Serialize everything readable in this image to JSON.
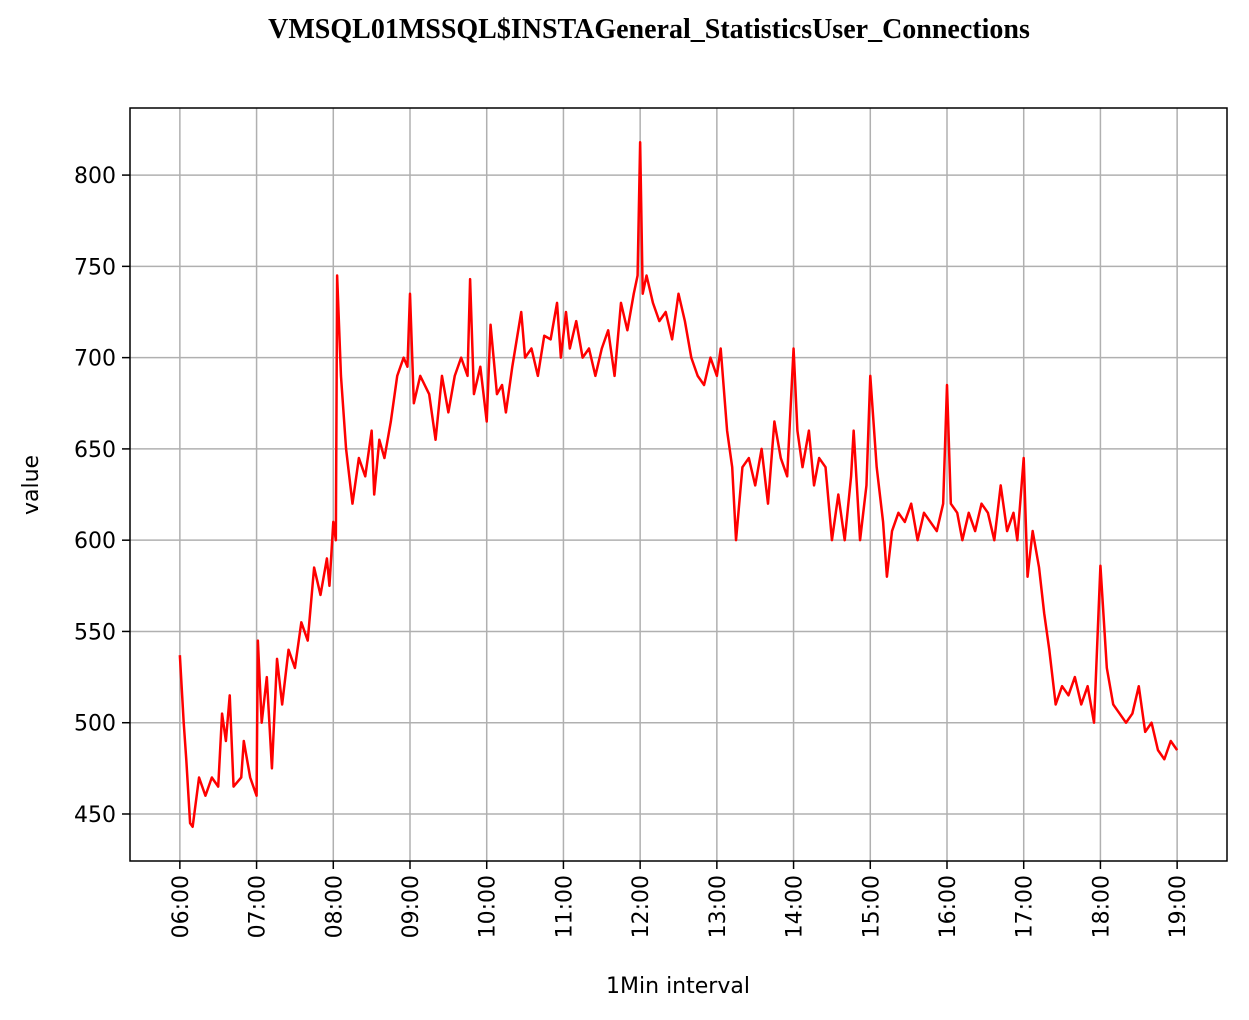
{
  "chart_data": {
    "type": "line",
    "title": "VMSQL01MSSQL$INSTAGeneral_StatisticsUser_Connections",
    "x_label": "1Min interval",
    "y_label": "value",
    "x": [
      "06:00",
      "06:03",
      "06:05",
      "06:08",
      "06:10",
      "06:15",
      "06:20",
      "06:25",
      "06:30",
      "06:33",
      "06:36",
      "06:39",
      "06:42",
      "06:48",
      "06:50",
      "06:55",
      "07:00",
      "07:01",
      "07:04",
      "07:08",
      "07:12",
      "07:16",
      "07:20",
      "07:25",
      "07:30",
      "07:35",
      "07:40",
      "07:45",
      "07:50",
      "07:55",
      "07:57",
      "08:00",
      "08:02",
      "08:03",
      "08:06",
      "08:10",
      "08:15",
      "08:20",
      "08:25",
      "08:30",
      "08:32",
      "08:36",
      "08:40",
      "08:45",
      "08:50",
      "08:55",
      "08:58",
      "09:00",
      "09:03",
      "09:08",
      "09:15",
      "09:20",
      "09:25",
      "09:30",
      "09:35",
      "09:40",
      "09:45",
      "09:47",
      "09:50",
      "09:55",
      "10:00",
      "10:03",
      "10:08",
      "10:12",
      "10:15",
      "10:20",
      "10:27",
      "10:30",
      "10:35",
      "10:40",
      "10:45",
      "10:50",
      "10:55",
      "10:58",
      "11:02",
      "11:05",
      "11:10",
      "11:15",
      "11:20",
      "11:25",
      "11:30",
      "11:35",
      "11:40",
      "11:45",
      "11:50",
      "11:55",
      "11:58",
      "12:00",
      "12:02",
      "12:05",
      "12:10",
      "12:15",
      "12:20",
      "12:25",
      "12:30",
      "12:35",
      "12:40",
      "12:45",
      "12:50",
      "12:55",
      "13:00",
      "13:03",
      "13:08",
      "13:12",
      "13:15",
      "13:20",
      "13:25",
      "13:30",
      "13:35",
      "13:40",
      "13:45",
      "13:50",
      "13:55",
      "14:00",
      "14:03",
      "14:07",
      "14:12",
      "14:16",
      "14:20",
      "14:25",
      "14:30",
      "14:35",
      "14:40",
      "14:45",
      "14:47",
      "14:52",
      "14:57",
      "15:00",
      "15:05",
      "15:10",
      "15:13",
      "15:17",
      "15:22",
      "15:27",
      "15:32",
      "15:37",
      "15:42",
      "15:47",
      "15:52",
      "15:57",
      "16:00",
      "16:03",
      "16:08",
      "16:12",
      "16:17",
      "16:22",
      "16:27",
      "16:32",
      "16:37",
      "16:42",
      "16:47",
      "16:52",
      "16:55",
      "17:00",
      "17:03",
      "17:07",
      "17:12",
      "17:16",
      "17:20",
      "17:25",
      "17:30",
      "17:35",
      "17:40",
      "17:45",
      "17:50",
      "17:55",
      "18:00",
      "18:05",
      "18:10",
      "18:15",
      "18:20",
      "18:25",
      "18:30",
      "18:35",
      "18:40",
      "18:45",
      "18:50",
      "18:55",
      "19:00"
    ],
    "series": [
      {
        "name": "value",
        "color": "#ff0000",
        "values": [
          537,
          500,
          480,
          445,
          443,
          470,
          460,
          470,
          465,
          505,
          490,
          515,
          465,
          470,
          490,
          470,
          460,
          545,
          500,
          525,
          475,
          535,
          510,
          540,
          530,
          555,
          545,
          585,
          570,
          590,
          575,
          610,
          600,
          745,
          690,
          650,
          620,
          645,
          635,
          660,
          625,
          655,
          645,
          665,
          690,
          700,
          695,
          735,
          675,
          690,
          680,
          655,
          690,
          670,
          690,
          700,
          690,
          743,
          680,
          695,
          665,
          718,
          680,
          685,
          670,
          695,
          725,
          700,
          705,
          690,
          712,
          710,
          730,
          700,
          725,
          705,
          720,
          700,
          705,
          690,
          705,
          715,
          690,
          730,
          715,
          735,
          745,
          818,
          735,
          745,
          730,
          720,
          725,
          710,
          735,
          720,
          700,
          690,
          685,
          700,
          690,
          705,
          660,
          640,
          600,
          640,
          645,
          630,
          650,
          620,
          665,
          645,
          635,
          705,
          660,
          640,
          660,
          630,
          645,
          640,
          600,
          625,
          600,
          635,
          660,
          600,
          630,
          690,
          640,
          610,
          580,
          605,
          615,
          610,
          620,
          600,
          615,
          610,
          605,
          620,
          685,
          620,
          615,
          600,
          615,
          605,
          620,
          615,
          600,
          630,
          605,
          615,
          600,
          645,
          580,
          605,
          585,
          560,
          540,
          510,
          520,
          515,
          525,
          510,
          520,
          500,
          586,
          530,
          510,
          505,
          500,
          505,
          520,
          495,
          500,
          485,
          480,
          490,
          485
        ]
      }
    ],
    "xlim": [
      "05:21",
      "19:39"
    ],
    "xticks": [
      "06:00",
      "07:00",
      "08:00",
      "09:00",
      "10:00",
      "11:00",
      "12:00",
      "13:00",
      "14:00",
      "15:00",
      "16:00",
      "17:00",
      "18:00",
      "19:00"
    ],
    "ylim": [
      424.25,
      836.75
    ],
    "yticks": [
      450,
      500,
      550,
      600,
      650,
      700,
      750,
      800
    ],
    "grid": true
  }
}
